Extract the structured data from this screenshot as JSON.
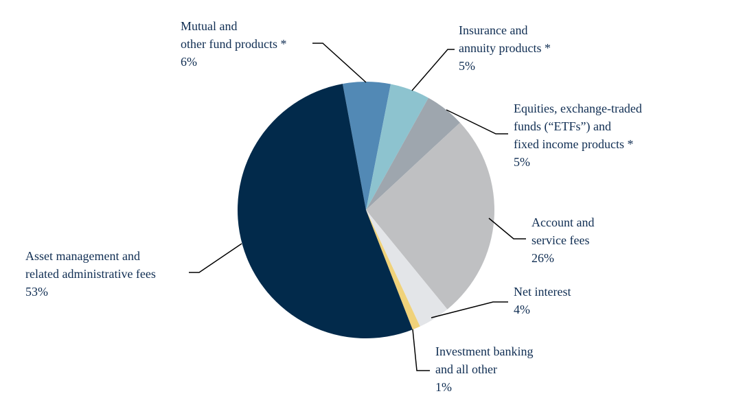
{
  "chart_data": {
    "type": "pie",
    "categories": [
      "Mutual and\nother fund products *",
      "Insurance and\nannuity products *",
      "Equities, exchange-traded\nfunds (“ETFs”) and\nfixed income products *",
      "Account and\nservice fees",
      "Net interest",
      "Investment banking\nand all other",
      "Asset management and\nrelated administrative fees"
    ],
    "values": [
      6,
      5,
      5,
      26,
      4,
      1,
      53
    ],
    "value_labels": [
      "6%",
      "5%",
      "5%",
      "26%",
      "4%",
      "1%",
      "53%"
    ],
    "colors": [
      "#5289b5",
      "#8dc3cf",
      "#9ea6ae",
      "#bfc0c2",
      "#e3e5e8",
      "#f0d27a",
      "#022a4b"
    ]
  }
}
